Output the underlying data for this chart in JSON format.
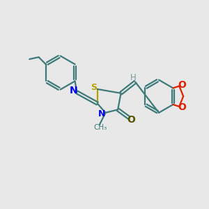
{
  "bg_color": "#e8e8e8",
  "bond_color": "#3d7a7a",
  "n_color": "#0000ee",
  "s_color": "#b8a000",
  "o_color": "#dd2200",
  "h_color": "#7a9a9a",
  "lw": 1.6,
  "xlim": [
    0,
    10
  ],
  "ylim": [
    0,
    10
  ]
}
